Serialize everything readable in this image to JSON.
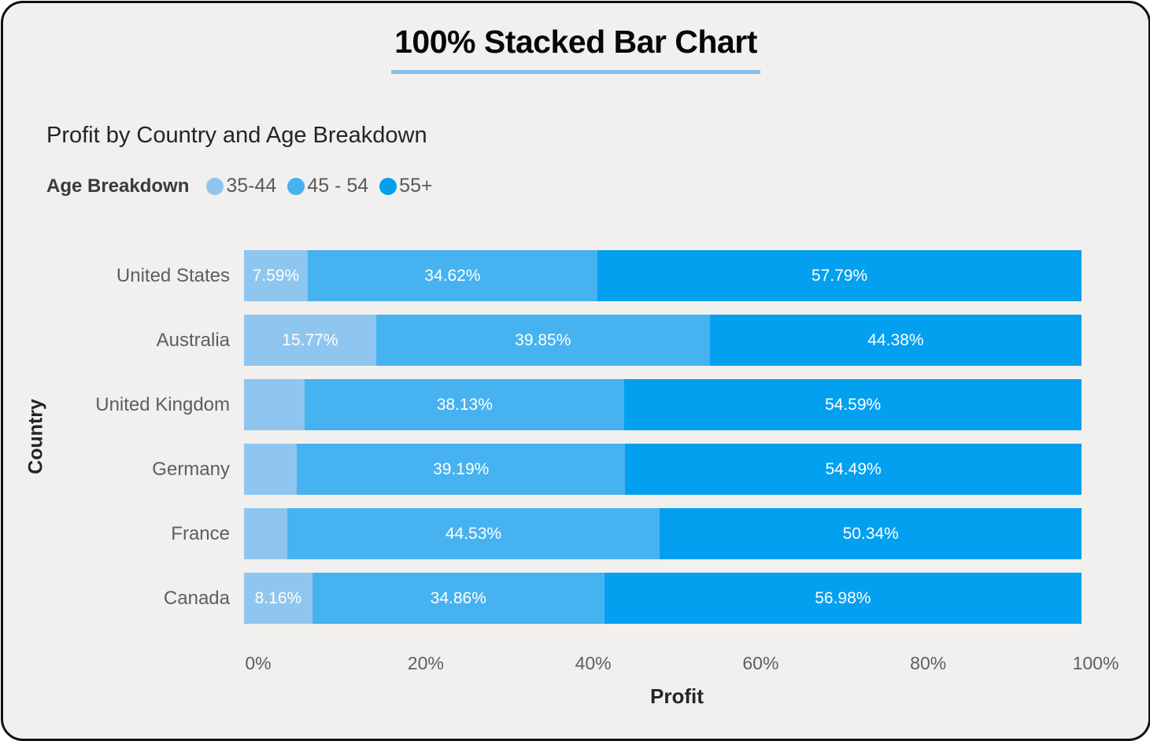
{
  "title": "100% Stacked Bar Chart",
  "subtitle": "Profit by Country and Age Breakdown",
  "accent_colors": {
    "title_underline": "#85C0EA",
    "card_background": "#F1F0EE",
    "card_border": "#111111"
  },
  "legend": {
    "title": "Age Breakdown",
    "items": [
      {
        "label": "35-44",
        "color": "#8FC6EF"
      },
      {
        "label": "45 - 54",
        "color": "#47B2F0"
      },
      {
        "label": "55+",
        "color": "#04A0F0"
      }
    ]
  },
  "x_axis": {
    "title": "Profit",
    "ticks": [
      "0%",
      "20%",
      "40%",
      "60%",
      "80%",
      "100%"
    ]
  },
  "y_axis": {
    "title": "Country"
  },
  "chart_data": {
    "type": "bar",
    "orientation": "horizontal",
    "stacked": true,
    "percent_stacked": true,
    "title": "Profit by Country and Age Breakdown",
    "xlabel": "Profit",
    "ylabel": "Country",
    "xlim": [
      0,
      100
    ],
    "grid": false,
    "legend_position": "top-left",
    "categories": [
      "United States",
      "Australia",
      "United Kingdom",
      "Germany",
      "France",
      "Canada"
    ],
    "series": [
      {
        "name": "35-44",
        "color": "#8FC6EF",
        "values": [
          7.59,
          15.77,
          7.28,
          6.32,
          5.13,
          8.16
        ],
        "data_labels": [
          "7.59%",
          "15.77%",
          "",
          "",
          "",
          "8.16%"
        ]
      },
      {
        "name": "45 - 54",
        "color": "#47B2F0",
        "values": [
          34.62,
          39.85,
          38.13,
          39.19,
          44.53,
          34.86
        ],
        "data_labels": [
          "34.62%",
          "39.85%",
          "38.13%",
          "39.19%",
          "44.53%",
          "34.86%"
        ]
      },
      {
        "name": "55+",
        "color": "#04A0F0",
        "values": [
          57.79,
          44.38,
          54.59,
          54.49,
          50.34,
          56.98
        ],
        "data_labels": [
          "57.79%",
          "44.38%",
          "54.59%",
          "54.49%",
          "50.34%",
          "56.98%"
        ]
      }
    ]
  }
}
